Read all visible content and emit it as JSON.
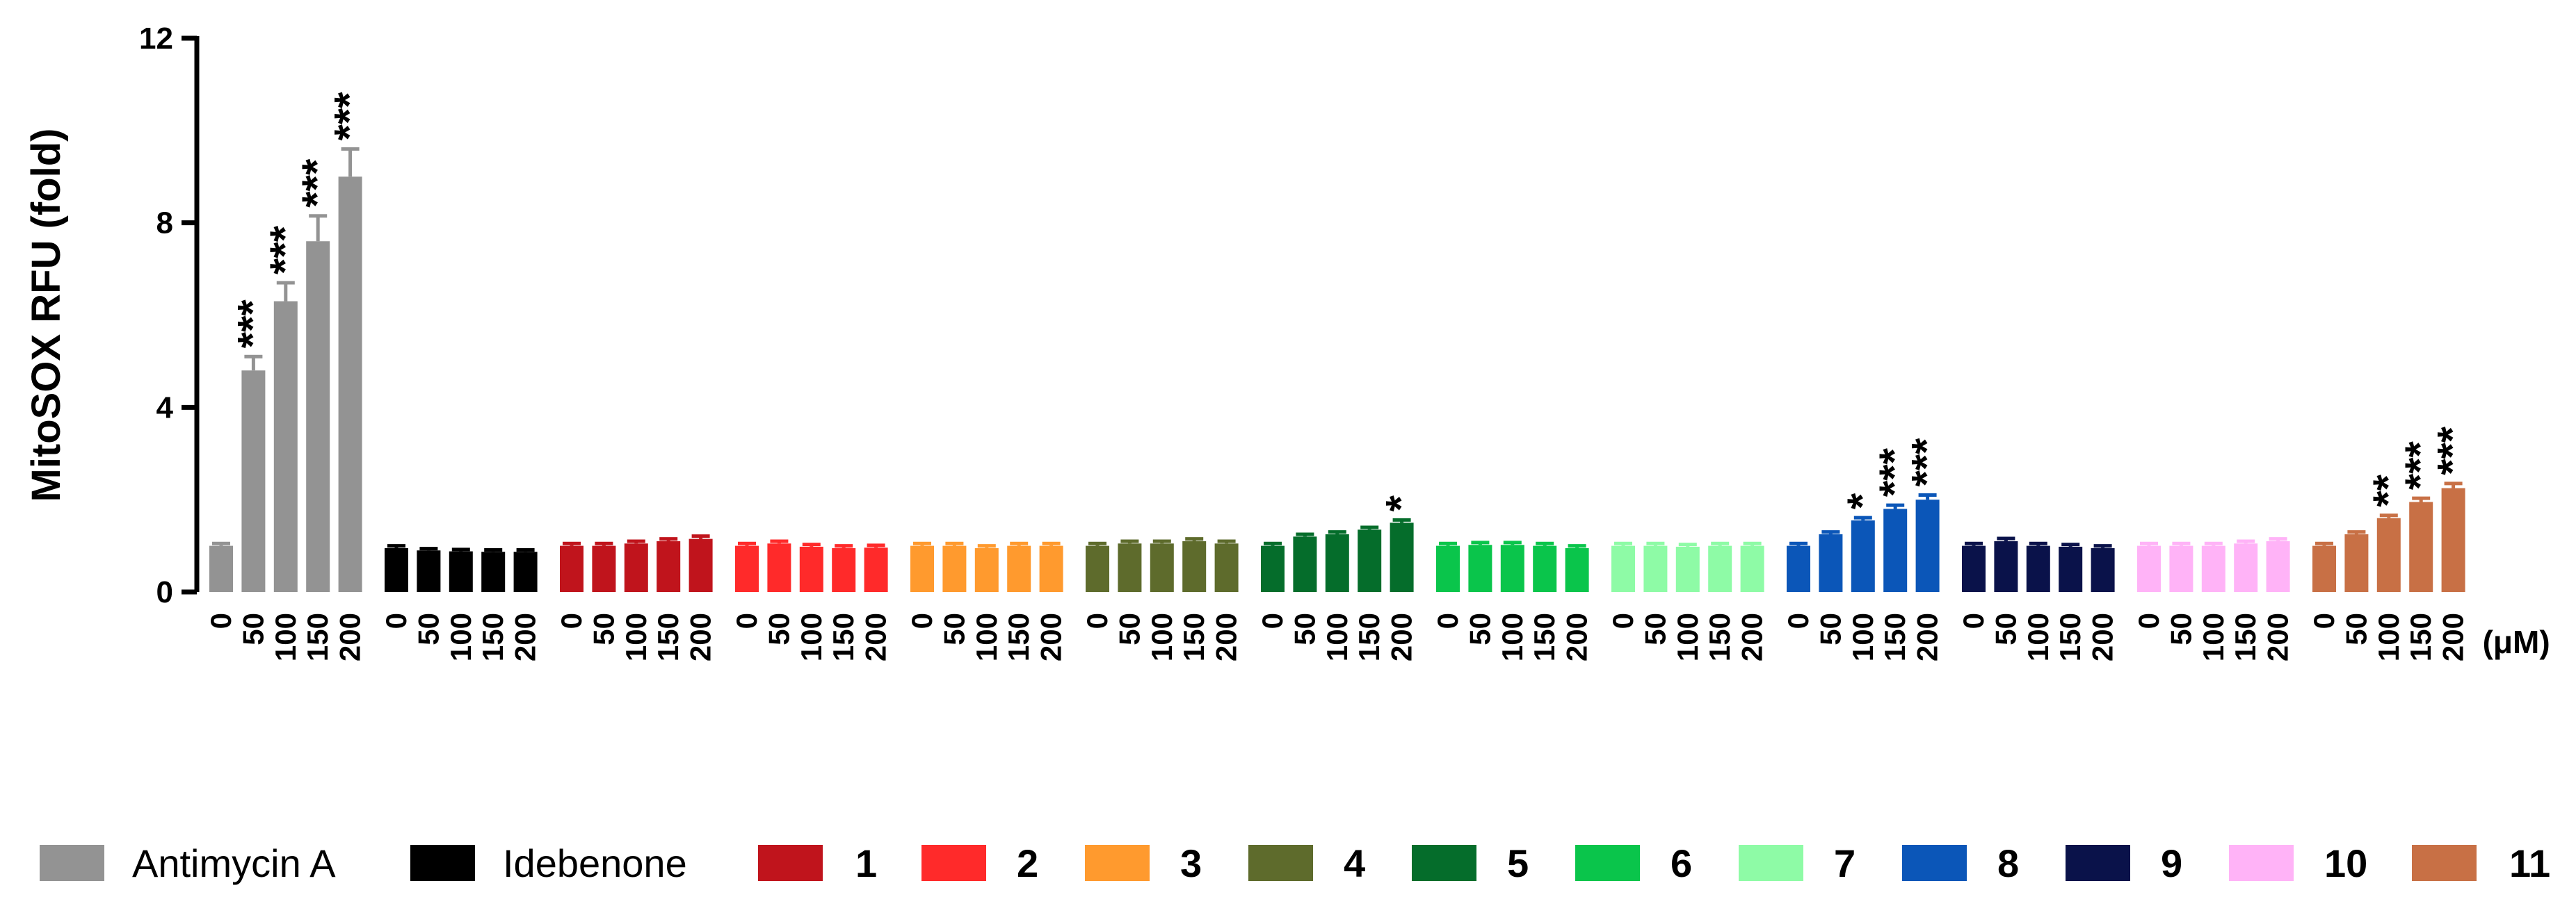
{
  "chart_data": {
    "type": "bar",
    "ylabel": "MitoSOX RFU (fold)",
    "ylim": [
      0,
      12
    ],
    "yticks": [
      0,
      4,
      8,
      12
    ],
    "x_unit": "(μM)",
    "doses": [
      "0",
      "50",
      "100",
      "150",
      "200"
    ],
    "legend_placement": "bottom",
    "series": [
      {
        "name": "Antimycin A",
        "color": "#939393",
        "values": [
          1.0,
          4.8,
          6.3,
          7.6,
          9.0
        ],
        "errors": [
          0.05,
          0.3,
          0.4,
          0.55,
          0.6
        ],
        "significance": [
          "",
          "***",
          "***",
          "***",
          "***"
        ]
      },
      {
        "name": "Idebenone",
        "color": "#000000",
        "values": [
          0.95,
          0.9,
          0.88,
          0.87,
          0.87
        ],
        "errors": [
          0.05,
          0.04,
          0.04,
          0.04,
          0.04
        ],
        "significance": [
          "",
          "",
          "",
          "",
          ""
        ]
      },
      {
        "name": "1",
        "color": "#c0141c",
        "values": [
          1.0,
          1.0,
          1.05,
          1.1,
          1.15
        ],
        "errors": [
          0.05,
          0.05,
          0.05,
          0.05,
          0.06
        ],
        "significance": [
          "",
          "",
          "",
          "",
          ""
        ]
      },
      {
        "name": "2",
        "color": "#ff2a2a",
        "values": [
          1.0,
          1.05,
          0.98,
          0.95,
          0.96
        ],
        "errors": [
          0.05,
          0.05,
          0.05,
          0.05,
          0.05
        ],
        "significance": [
          "",
          "",
          "",
          "",
          ""
        ]
      },
      {
        "name": "3",
        "color": "#ff9a2e",
        "values": [
          1.0,
          1.0,
          0.95,
          1.0,
          1.0
        ],
        "errors": [
          0.05,
          0.05,
          0.05,
          0.05,
          0.05
        ],
        "significance": [
          "",
          "",
          "",
          "",
          ""
        ]
      },
      {
        "name": "4",
        "color": "#5e6b2c",
        "values": [
          1.0,
          1.05,
          1.05,
          1.1,
          1.05
        ],
        "errors": [
          0.05,
          0.05,
          0.05,
          0.05,
          0.05
        ],
        "significance": [
          "",
          "",
          "",
          "",
          ""
        ]
      },
      {
        "name": "5",
        "color": "#056d2b",
        "values": [
          1.0,
          1.2,
          1.25,
          1.35,
          1.5
        ],
        "errors": [
          0.05,
          0.05,
          0.05,
          0.05,
          0.06
        ],
        "significance": [
          "",
          "",
          "",
          "",
          "*"
        ]
      },
      {
        "name": "6",
        "color": "#0ac54b",
        "values": [
          1.0,
          1.02,
          1.02,
          1.0,
          0.95
        ],
        "errors": [
          0.05,
          0.05,
          0.05,
          0.05,
          0.05
        ],
        "significance": [
          "",
          "",
          "",
          "",
          ""
        ]
      },
      {
        "name": "7",
        "color": "#8efba6",
        "values": [
          1.0,
          1.0,
          0.98,
          1.0,
          1.0
        ],
        "errors": [
          0.05,
          0.05,
          0.05,
          0.05,
          0.05
        ],
        "significance": [
          "",
          "",
          "",
          "",
          ""
        ]
      },
      {
        "name": "8",
        "color": "#0b56b8",
        "values": [
          1.0,
          1.25,
          1.55,
          1.8,
          2.0
        ],
        "errors": [
          0.05,
          0.05,
          0.06,
          0.08,
          0.1
        ],
        "significance": [
          "",
          "",
          "*",
          "***",
          "***"
        ]
      },
      {
        "name": "9",
        "color": "#0a124a",
        "values": [
          1.0,
          1.1,
          1.0,
          0.98,
          0.95
        ],
        "errors": [
          0.05,
          0.06,
          0.05,
          0.05,
          0.05
        ],
        "significance": [
          "",
          "",
          "",
          "",
          ""
        ]
      },
      {
        "name": "10",
        "color": "#ffb3f7",
        "values": [
          1.0,
          1.0,
          1.0,
          1.05,
          1.1
        ],
        "errors": [
          0.05,
          0.05,
          0.05,
          0.05,
          0.05
        ],
        "significance": [
          "",
          "",
          "",
          "",
          ""
        ]
      },
      {
        "name": "11",
        "color": "#c87045",
        "values": [
          1.0,
          1.25,
          1.6,
          1.95,
          2.25
        ],
        "errors": [
          0.05,
          0.05,
          0.06,
          0.08,
          0.1
        ],
        "significance": [
          "",
          "",
          "**",
          "***",
          "***"
        ]
      }
    ]
  }
}
